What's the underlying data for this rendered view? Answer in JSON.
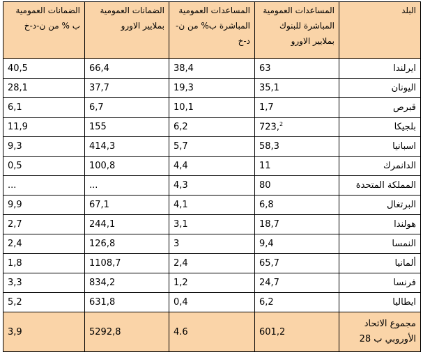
{
  "headers": [
    "البلد",
    "المساعدات العمومية المباشرة للبنوك بملايير الاورو",
    "المساعدات العمومية المباشرة ب% من ن-د-خ",
    "الضمانات العمومية بملايير الاورو",
    "الضمانات العمومية ب % من ن-د-خ"
  ],
  "rows": [
    {
      "country": "ايرلندا",
      "aid_bn": "63",
      "aid_pct": "38,4",
      "guar_bn": "66,4",
      "guar_pct": "40,5"
    },
    {
      "country": "اليونان",
      "aid_bn": "35,1",
      "aid_pct": "19,3",
      "guar_bn": "37,7",
      "guar_pct": "28,1"
    },
    {
      "country": "قبرص",
      "aid_bn": "1,7",
      "aid_pct": "10,1",
      "guar_bn": "6,7",
      "guar_pct": "6,1"
    },
    {
      "country": "بلجيكا",
      "aid_bn": "723,",
      "aid_bn_sup": "2",
      "aid_pct": "6,2",
      "guar_bn": "155",
      "guar_pct": "11,9"
    },
    {
      "country": "اسبانيا",
      "aid_bn": "58,3",
      "aid_pct": "5,7",
      "guar_bn": "414,3",
      "guar_pct": "9,3"
    },
    {
      "country": "الدانمرك",
      "aid_bn": "11",
      "aid_pct": "4,4",
      "guar_bn": "100,8",
      "guar_pct": "0,5"
    },
    {
      "country": "المملكة المتحدة",
      "aid_bn": "80",
      "aid_pct": "4,3",
      "guar_bn": "...",
      "guar_pct": "..."
    },
    {
      "country": "البرتغال",
      "aid_bn": "6,8",
      "aid_pct": "4,1",
      "guar_bn": "67,1",
      "guar_pct": "9,9"
    },
    {
      "country": "هولندا",
      "aid_bn": "18,7",
      "aid_pct": "3,1",
      "guar_bn": "244,1",
      "guar_pct": "2,7"
    },
    {
      "country": "النمسا",
      "aid_bn": "9,4",
      "aid_pct": "3",
      "guar_bn": "126,8",
      "guar_pct": "2,4"
    },
    {
      "country": "ألمانيا",
      "aid_bn": "65,7",
      "aid_pct": "2,4",
      "guar_bn": "1108,7",
      "guar_pct": "1,8"
    },
    {
      "country": "فرنسا",
      "aid_bn": "24,7",
      "aid_pct": "1,2",
      "guar_bn": "834,2",
      "guar_pct": "3,3"
    },
    {
      "country": "ايطاليا",
      "aid_bn": "6,2",
      "aid_pct": "0,4",
      "guar_bn": "631,8",
      "guar_pct": "5,2"
    }
  ],
  "total": {
    "label": "مجموع الاتحاد الأوروبي ب 28",
    "aid_bn": "601,2",
    "aid_pct": "4.6",
    "guar_bn": "5292,8",
    "guar_pct": "3,9"
  },
  "colors": {
    "header_bg": "#fad4a8",
    "total_bg": "#fad4a8",
    "border": "#000000"
  }
}
